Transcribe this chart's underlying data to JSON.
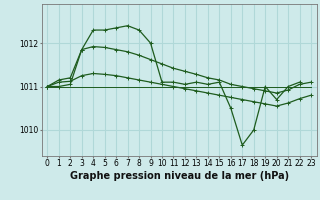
{
  "bg_color": "#ceeaea",
  "grid_color": "#b0d8d8",
  "line_color": "#1e5c1e",
  "xlabel": "Graphe pression niveau de la mer (hPa)",
  "xlabel_fontsize": 7,
  "tick_fontsize": 5.5,
  "ylim": [
    1009.4,
    1012.9
  ],
  "xlim": [
    -0.5,
    23.5
  ],
  "yticks": [
    1010,
    1011,
    1012
  ],
  "xticks": [
    0,
    1,
    2,
    3,
    4,
    5,
    6,
    7,
    8,
    9,
    10,
    11,
    12,
    13,
    14,
    15,
    16,
    17,
    18,
    19,
    20,
    21,
    22,
    23
  ],
  "series0": [
    1011.0,
    1011.0,
    1011.05,
    1011.85,
    1012.3,
    1012.3,
    1012.35,
    1012.4,
    1012.3,
    1012.0,
    1011.1,
    1011.1,
    1011.05,
    1011.1,
    1011.05,
    1011.1,
    1010.5,
    1009.65,
    1010.0,
    1011.0,
    1010.7,
    1011.0,
    1011.1,
    null
  ],
  "series1": [
    1011.0,
    1011.15,
    1011.2,
    1011.85,
    1011.92,
    1011.9,
    1011.85,
    1011.8,
    1011.72,
    1011.62,
    1011.52,
    1011.42,
    1011.35,
    1011.28,
    1011.2,
    1011.15,
    1011.05,
    1011.0,
    1010.95,
    1010.9,
    1010.85,
    1010.92,
    1011.05,
    1011.1
  ],
  "series2": [
    1011.0,
    1011.1,
    1011.12,
    1011.25,
    1011.3,
    1011.28,
    1011.25,
    1011.2,
    1011.15,
    1011.1,
    1011.05,
    1011.0,
    1010.95,
    1010.9,
    1010.85,
    1010.8,
    1010.75,
    1010.7,
    1010.65,
    1010.6,
    1010.55,
    1010.62,
    1010.72,
    1010.8
  ],
  "series3": [
    1011.0,
    1011.0,
    1011.0,
    1011.0,
    1011.0,
    1011.0,
    1011.0,
    1011.0,
    1011.0,
    1011.0,
    1011.0,
    1011.0,
    1011.0,
    1011.0,
    1011.0,
    1011.0,
    1011.0,
    1011.0,
    1011.0,
    1011.0,
    1011.0,
    1011.0,
    1011.0,
    1011.0
  ]
}
